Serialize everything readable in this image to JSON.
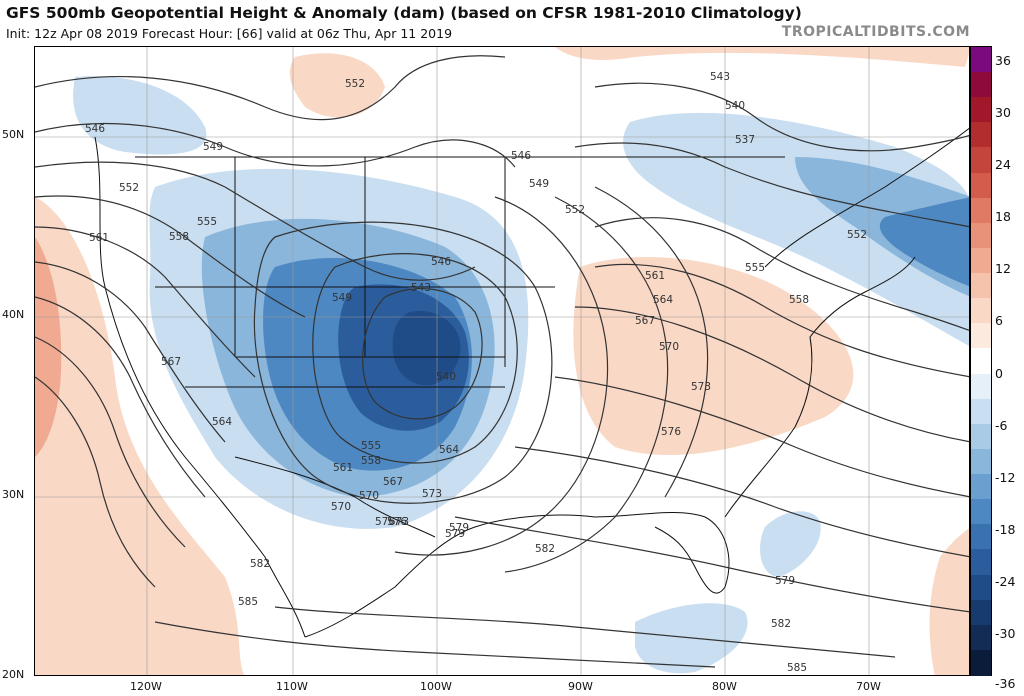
{
  "title": "GFS 500mb Geopotential Height & Anomaly (dam) (based on CFSR 1981-2010 Climatology)",
  "subtitle": "Init: 12z Apr 08 2019   Forecast Hour: [66]   valid at 06z Thu, Apr 11 2019",
  "brand": "TROPICALTIDBITS.COM",
  "lat_labels": [
    "50N",
    "40N",
    "30N",
    "20N"
  ],
  "lon_labels": [
    "120W",
    "110W",
    "100W",
    "90W",
    "80W",
    "70W"
  ],
  "contour_labels": [
    "552",
    "543",
    "540",
    "537",
    "546",
    "549",
    "552",
    "555",
    "558",
    "561",
    "564",
    "567",
    "570",
    "573",
    "576",
    "579",
    "582",
    "585",
    "546",
    "549",
    "552",
    "555",
    "558",
    "561",
    "564",
    "567",
    "570",
    "573",
    "576",
    "579",
    "582",
    "585",
    "543",
    "540",
    "546",
    "549",
    "552",
    "555",
    "558",
    "561",
    "564",
    "567",
    "570",
    "573",
    "576",
    "579",
    "582"
  ],
  "colorbar": {
    "ticks": [
      "36",
      "30",
      "24",
      "18",
      "12",
      "6",
      "0",
      "-6",
      "-12",
      "-18",
      "-24",
      "-30",
      "-36"
    ],
    "colors": {
      "36": "#7b0a7e",
      "33": "#8e0a3a",
      "30": "#a0182a",
      "27": "#b22e2e",
      "24": "#c4453c",
      "21": "#d45c4c",
      "18": "#e07a64",
      "15": "#e9927a",
      "12": "#f0aa92",
      "9": "#f5c2ab",
      "6": "#fad8c6",
      "3": "#fdeadf",
      "0": "#ffffff",
      "-3": "#e6f0f8",
      "-6": "#c9def0",
      "-9": "#a9cbe6",
      "-12": "#8ab6db",
      "-15": "#6a9fd0",
      "-18": "#4e88c2",
      "-21": "#3a72b0",
      "-24": "#2b5d9c",
      "-27": "#1f4b86",
      "-30": "#183b6e",
      "-33": "#122c55",
      "-36": "#0b1c3a"
    }
  }
}
